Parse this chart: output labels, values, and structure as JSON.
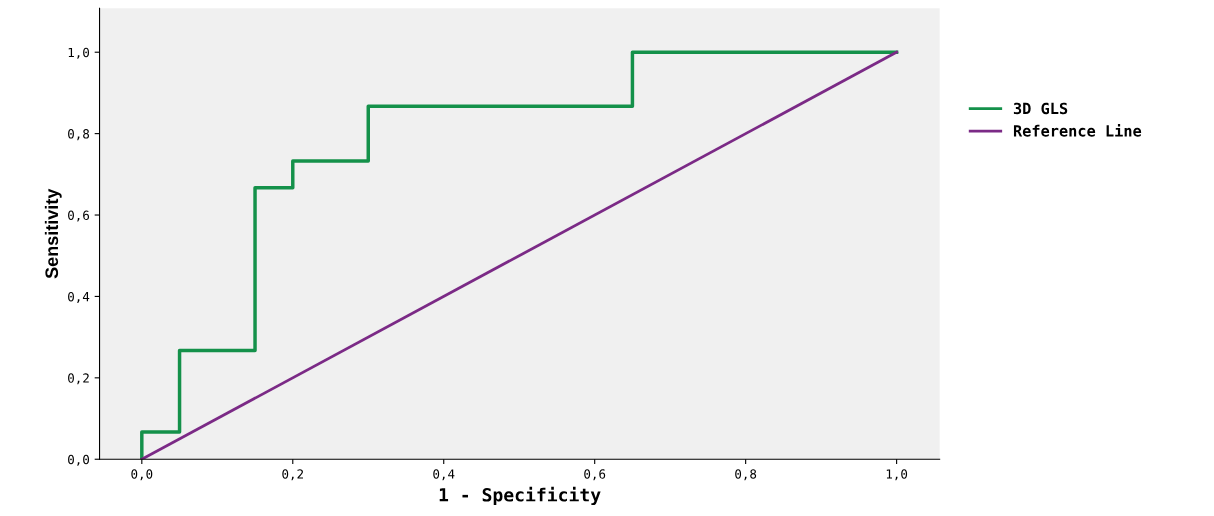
{
  "chart_data": {
    "type": "step",
    "xlabel": "1 - Specificity",
    "ylabel": "Sensitivity",
    "xlim": [
      -0.056,
      1.057
    ],
    "ylim": [
      0,
      1.108
    ],
    "xticks": [
      {
        "value": 0,
        "label": "0,0"
      },
      {
        "value": 0.2,
        "label": "0,2"
      },
      {
        "value": 0.4,
        "label": "0,4"
      },
      {
        "value": 0.6,
        "label": "0,6"
      },
      {
        "value": 0.8,
        "label": "0,8"
      },
      {
        "value": 1,
        "label": "1,0"
      }
    ],
    "yticks": [
      {
        "value": 0,
        "label": "0,0"
      },
      {
        "value": 0.2,
        "label": "0,2"
      },
      {
        "value": 0.4,
        "label": "0,4"
      },
      {
        "value": 0.6,
        "label": "0,6"
      },
      {
        "value": 0.8,
        "label": "0,8"
      },
      {
        "value": 1,
        "label": "1,0"
      }
    ],
    "grid": false,
    "legend": "right",
    "marker": "none",
    "series": [
      {
        "name": "3D GLS",
        "color": "#14914a",
        "x": [
          0,
          0,
          0.05,
          0.15,
          0.2,
          0.3,
          0.65,
          1
        ],
        "values": [
          0,
          0.067,
          0.267,
          0.667,
          0.733,
          0.867,
          1,
          1
        ]
      },
      {
        "name": "Reference Line",
        "type": "line",
        "color": "#7b2a86",
        "x": [
          0,
          1
        ],
        "values": [
          0,
          1
        ]
      }
    ]
  }
}
